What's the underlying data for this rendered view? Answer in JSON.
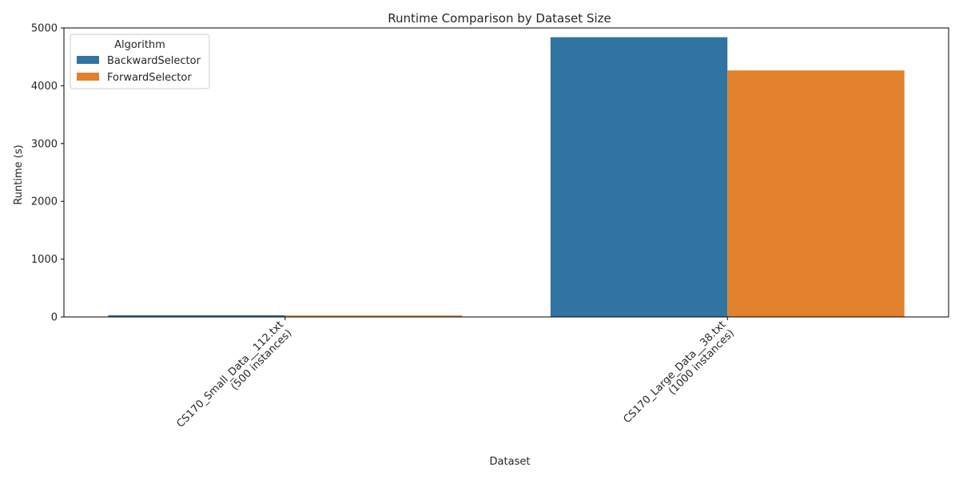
{
  "chart_data": {
    "type": "bar",
    "title": "Runtime Comparison by Dataset Size",
    "xlabel": "Dataset",
    "ylabel": "Runtime (s)",
    "categories": [
      [
        "CS170_Small_Data__112.txt",
        "(500 instances)"
      ],
      [
        "CS170_Large_Data__38.txt",
        "(1000 instances)"
      ]
    ],
    "series": [
      {
        "name": "BackwardSelector",
        "color": "#3274a1",
        "values": [
          30,
          4840
        ]
      },
      {
        "name": "ForwardSelector",
        "color": "#e1812c",
        "values": [
          25,
          4265
        ]
      }
    ],
    "ylim": [
      0,
      5000
    ],
    "yticks": [
      0,
      1000,
      2000,
      3000,
      4000,
      5000
    ],
    "legend": {
      "title": "Algorithm",
      "placement": "top-left"
    },
    "grid": false
  }
}
